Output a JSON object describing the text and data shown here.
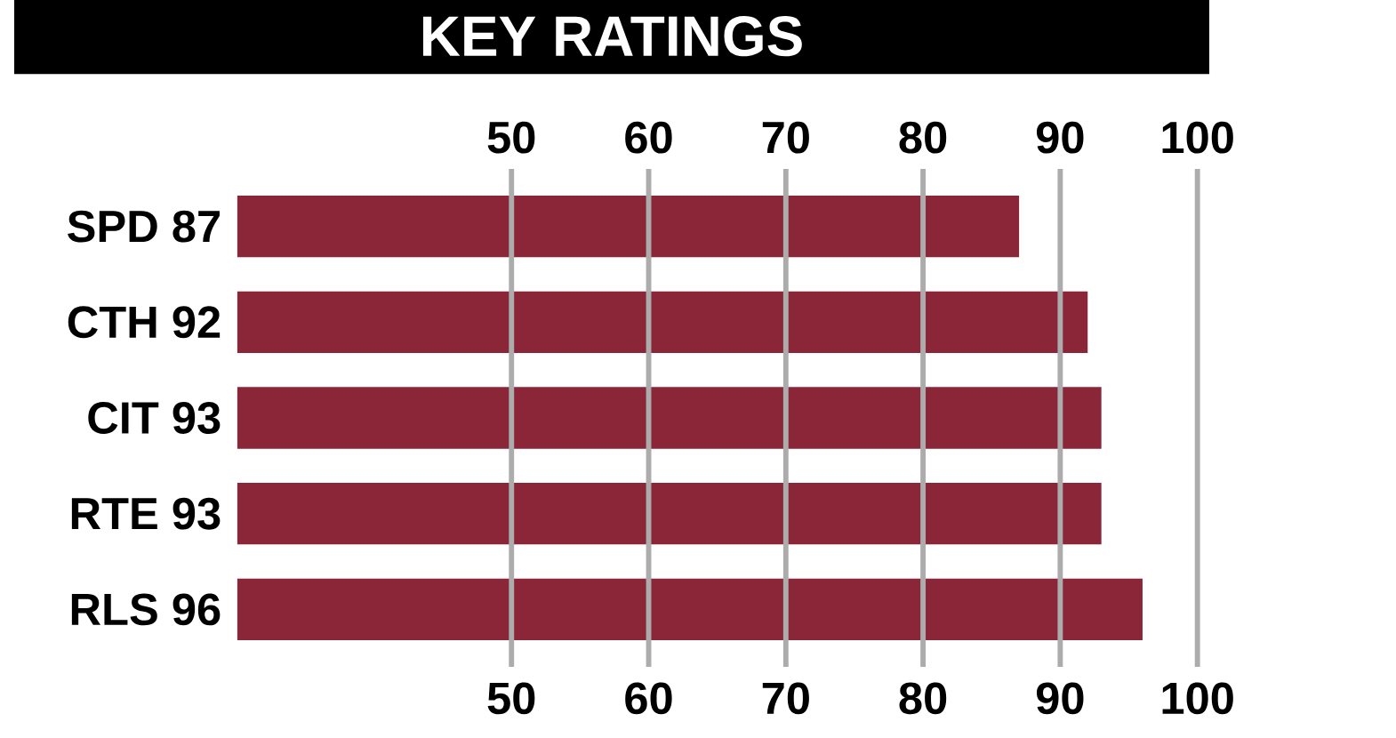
{
  "chart_data": {
    "type": "bar",
    "orientation": "horizontal",
    "title": "KEY RATINGS",
    "categories": [
      "SPD 87",
      "CTH 92",
      "CIT 93",
      "RTE 93",
      "RLS 96"
    ],
    "values": [
      87,
      92,
      93,
      93,
      96
    ],
    "color": "#8b2639",
    "xlim": [
      30,
      100
    ],
    "xticks": [
      50,
      60,
      70,
      80,
      90,
      100
    ],
    "x2lim": [
      30,
      100
    ],
    "x2ticks": [
      50,
      60,
      70,
      80,
      90,
      100
    ],
    "grid": "x"
  }
}
